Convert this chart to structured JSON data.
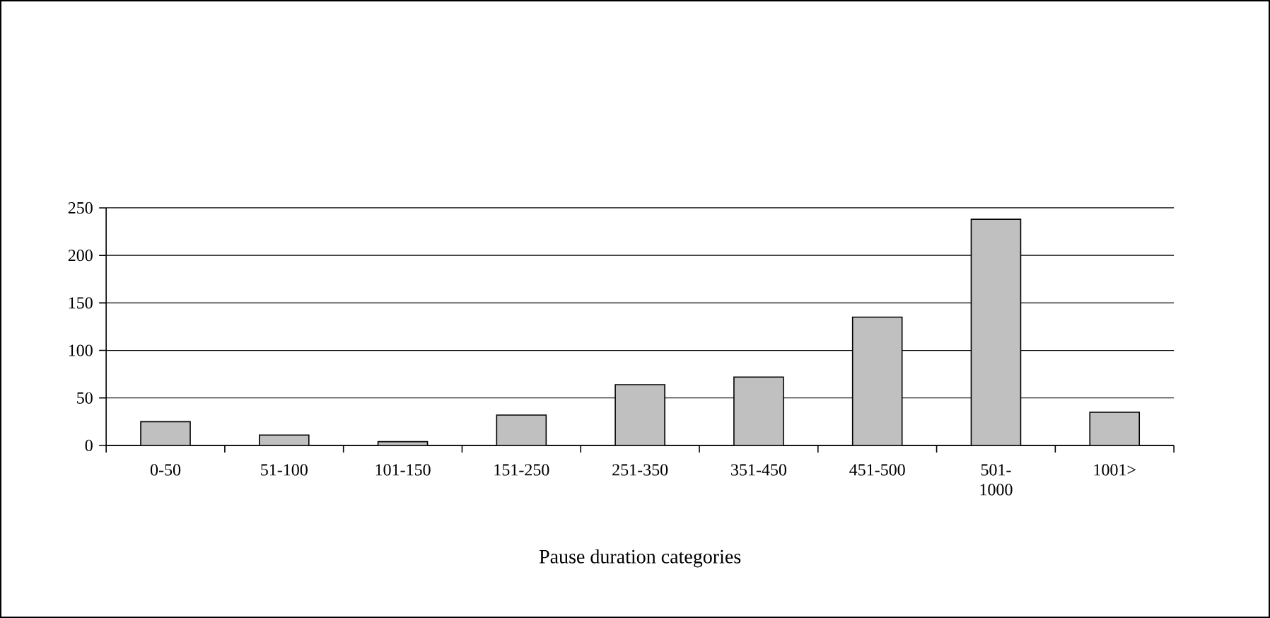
{
  "chart_data": {
    "type": "bar",
    "xlabel": "Pause duration categories",
    "categories": [
      "0-50",
      "51-100",
      "101-150",
      "151-250",
      "251-350",
      "351-450",
      "451-500",
      "501-1000",
      "1001>"
    ],
    "values": [
      25,
      11,
      4,
      32,
      64,
      72,
      135,
      238,
      35
    ],
    "color": "#c0c0c0",
    "ylim": [
      0,
      250
    ],
    "yticks": [
      0,
      50,
      100,
      150,
      200,
      250
    ],
    "grid": "y"
  }
}
